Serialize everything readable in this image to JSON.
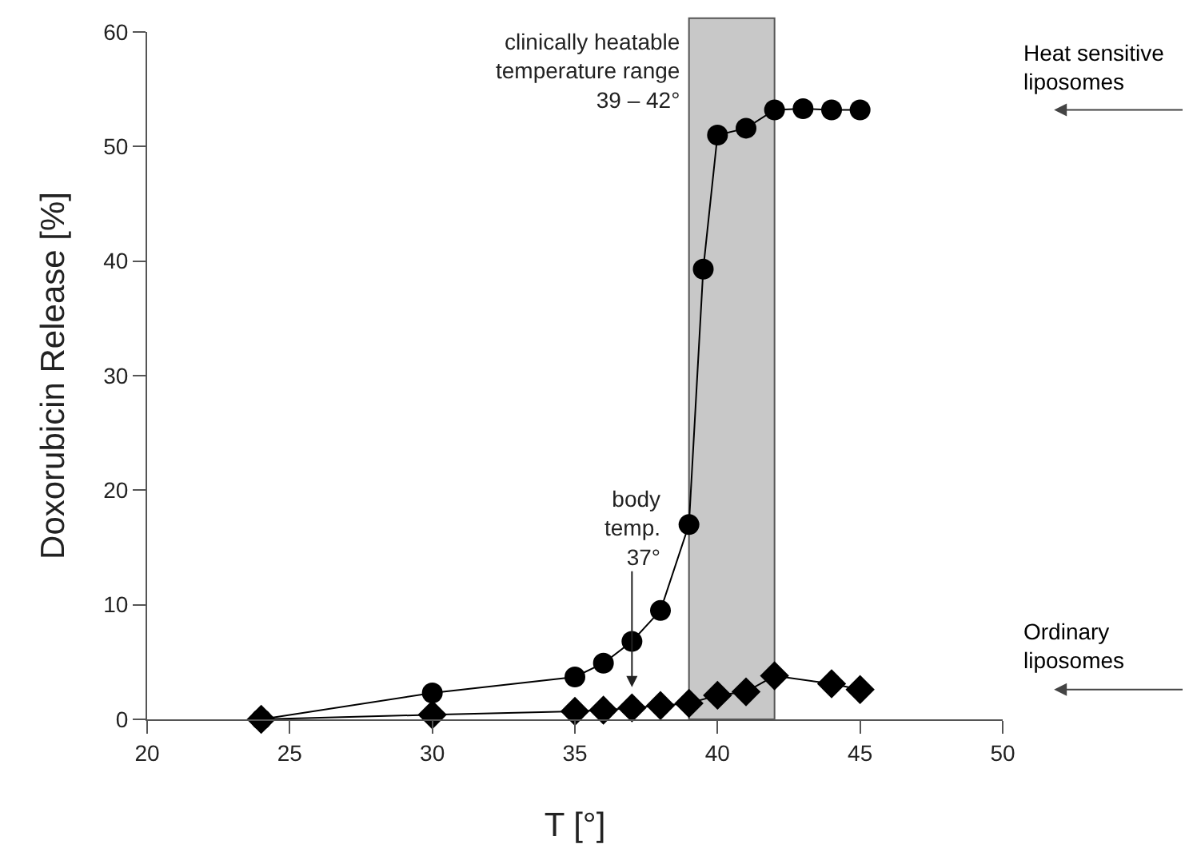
{
  "chart_data": {
    "type": "line",
    "xlabel": "T [°]",
    "ylabel": "Doxorubicin Release [%]",
    "xlim": [
      20,
      50
    ],
    "xticks": [
      20,
      25,
      30,
      35,
      40,
      45,
      50
    ],
    "ylim": [
      0,
      60
    ],
    "yticks": [
      0,
      10,
      20,
      30,
      40,
      50,
      60
    ],
    "grid": false,
    "legend": false,
    "line_style": "solid",
    "series": [
      {
        "name": "Heat sensitive liposomes",
        "color": "#000000",
        "marker": "circle",
        "x": [
          24,
          30,
          35,
          36,
          37,
          38,
          39,
          39.5,
          40,
          41,
          42,
          43,
          44,
          45
        ],
        "values": [
          0,
          2.3,
          3.7,
          4.9,
          6.8,
          9.5,
          17,
          39.3,
          51,
          51.6,
          53.2,
          53.3,
          53.2,
          53.2
        ]
      },
      {
        "name": "Ordinary liposomes",
        "color": "#000000",
        "marker": "diamond",
        "x": [
          24,
          30,
          35,
          36,
          37,
          38,
          39,
          40,
          41,
          42,
          44,
          45
        ],
        "values": [
          0,
          0.4,
          0.7,
          0.8,
          1.0,
          1.2,
          1.4,
          2.1,
          2.4,
          3.8,
          3.1,
          2.6
        ]
      }
    ],
    "bands": [
      {
        "axis": "x",
        "from": 39,
        "to": 42,
        "label": "clinically heatable temperature range 39 – 42°",
        "color": "#c8c8c8"
      }
    ],
    "annotations": [
      {
        "text": "body temp. 37°",
        "x": 37,
        "y": 2.8
      }
    ]
  }
}
